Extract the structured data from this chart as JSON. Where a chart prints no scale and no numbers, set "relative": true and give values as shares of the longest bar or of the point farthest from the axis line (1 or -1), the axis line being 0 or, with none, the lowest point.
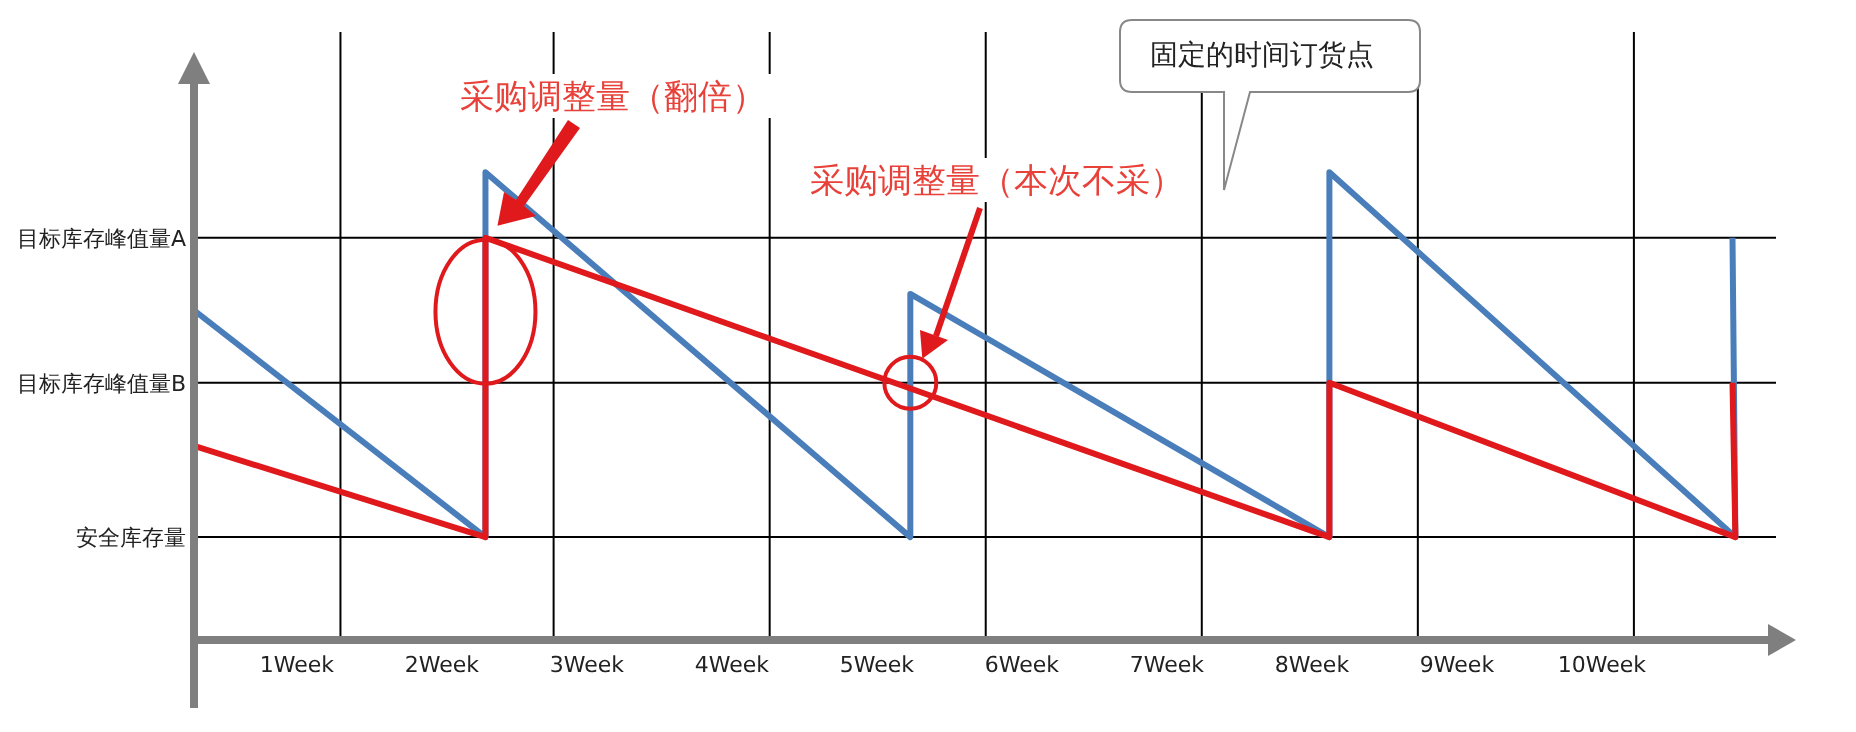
{
  "chart_data": {
    "type": "line",
    "relative": true,
    "grid": false,
    "legend": false,
    "marker": "none",
    "line_style": "solid",
    "xlim": [
      0.29,
      11.2
    ],
    "xticks": [
      {
        "value": 1,
        "label": "1Week"
      },
      {
        "value": 2,
        "label": "2Week"
      },
      {
        "value": 3,
        "label": "3Week"
      },
      {
        "value": 4,
        "label": "4Week"
      },
      {
        "value": 5,
        "label": "5Week"
      },
      {
        "value": 6,
        "label": "6Week"
      },
      {
        "value": 7,
        "label": "7Week"
      },
      {
        "value": 8,
        "label": "8Week"
      },
      {
        "value": 9,
        "label": "9Week"
      },
      {
        "value": 10,
        "label": "10Week"
      }
    ],
    "series": [
      {
        "color": "#4a7ebb",
        "x": [
          0.29,
          2.3,
          2.3,
          5.23,
          5.23,
          8.12,
          8.12,
          10.92,
          10.9
        ],
        "values": [
          0.705,
          0.22,
          1,
          0.22,
          0.74,
          0.22,
          1,
          0.22,
          0.86
        ]
      },
      {
        "color": "#e0191c",
        "x": [
          0.29,
          2.3,
          2.3,
          8.12,
          8.12,
          10.92,
          10.9
        ],
        "values": [
          0.415,
          0.22,
          0.86,
          0.22,
          0.55,
          0.22,
          0.55
        ]
      }
    ],
    "ref_lines": [
      {
        "axis": "y",
        "value": 0.86,
        "label": "目标库存峰值量A",
        "color": "#000000"
      },
      {
        "axis": "y",
        "value": 0.55,
        "label": "目标库存峰值量B",
        "color": "#000000"
      },
      {
        "axis": "y",
        "value": 0.22,
        "label": "安全库存量",
        "color": "#000000"
      },
      {
        "axis": "x",
        "value": 1.3,
        "color": "#000000"
      },
      {
        "axis": "x",
        "value": 2.77,
        "color": "#000000"
      },
      {
        "axis": "x",
        "value": 4.26,
        "color": "#000000"
      },
      {
        "axis": "x",
        "value": 5.75,
        "color": "#000000"
      },
      {
        "axis": "x",
        "value": 7.24,
        "color": "#000000"
      },
      {
        "axis": "x",
        "value": 8.73,
        "color": "#000000"
      },
      {
        "axis": "x",
        "value": 10.22,
        "color": "#000000"
      }
    ],
    "annotations": [
      "采购调整量（翻倍）",
      "采购调整量（本次不采）",
      "固定的时间订货点"
    ]
  }
}
